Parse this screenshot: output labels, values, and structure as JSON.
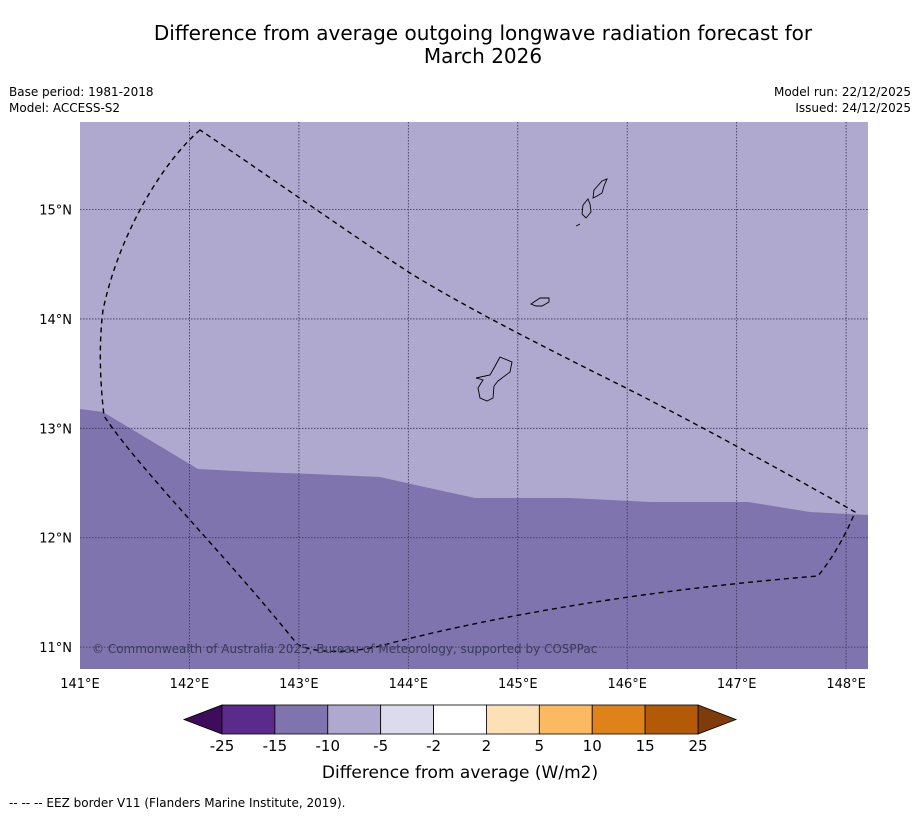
{
  "title": {
    "line1": "Difference from average outgoing longwave radiation forecast for",
    "line2": "March 2026"
  },
  "meta": {
    "base_period": "Base period: 1981-2018",
    "model": "Model: ACCESS-S2",
    "model_run": "Model run: 22/12/2025",
    "issued": "Issued: 24/12/2025"
  },
  "map": {
    "lon_range": [
      141.0,
      148.2
    ],
    "lat_range": [
      10.8,
      15.8
    ],
    "x_ticks": [
      "141°E",
      "142°E",
      "143°E",
      "144°E",
      "145°E",
      "146°E",
      "147°E",
      "148°E"
    ],
    "y_ticks": [
      "15°N",
      "14°N",
      "13°N",
      "12°N",
      "11°N"
    ],
    "copyright": "© Commonwealth of Australia 2025, Bureau of Meteorology, supported by COSPPac",
    "regions": [
      {
        "category": "-10 to -5",
        "color": "#afa9d0"
      },
      {
        "category": "-15 to -10",
        "color": "#7f74ad"
      }
    ]
  },
  "colorbar": {
    "label": "Difference from average (W/m2)",
    "ticks": [
      "-25",
      "-15",
      "-10",
      "-5",
      "-2",
      "2",
      "5",
      "10",
      "15",
      "25"
    ],
    "low_extend_color": "#3d0d5c",
    "high_extend_color": "#7f3c0a",
    "colors": [
      "#5a2a8c",
      "#7f74ad",
      "#afa9d0",
      "#dcdbee",
      "#ffffff",
      "#fde0b6",
      "#fdb962",
      "#e0821a",
      "#b35a09"
    ]
  },
  "footer": {
    "legend": "--  --  -- EEZ border V11 (Flanders Marine Institute, 2019)."
  }
}
